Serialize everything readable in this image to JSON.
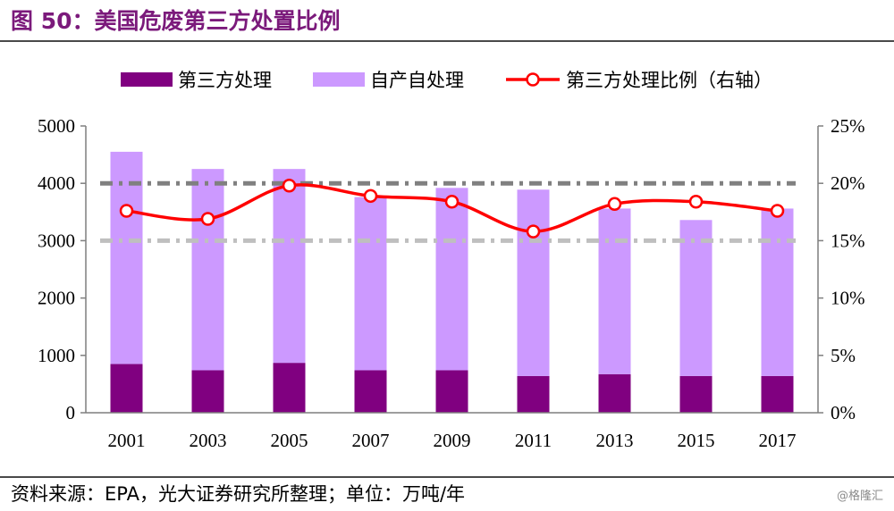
{
  "figure": {
    "title": "图 50：美国危废第三方处置比例",
    "source": "资料来源：EPA，光大证券研究所整理；单位：万吨/年",
    "watermark": "@格隆汇"
  },
  "colors": {
    "title": "#7b1a7b",
    "third_party_bar": "#800080",
    "self_bar": "#cc99ff",
    "ratio_line": "#ff0000",
    "ref_line_20": "#808080",
    "ref_line_15": "#bfbfbf"
  },
  "chart_data": {
    "type": "bar",
    "stacked": true,
    "categories": [
      "2001",
      "2003",
      "2005",
      "2007",
      "2009",
      "2011",
      "2013",
      "2015",
      "2017"
    ],
    "series": [
      {
        "name": "第三方处理",
        "kind": "bar",
        "axis": "left",
        "values": [
          850,
          740,
          870,
          740,
          740,
          640,
          670,
          640,
          640
        ]
      },
      {
        "name": "自产自处理",
        "kind": "bar",
        "axis": "left",
        "values": [
          3700,
          3510,
          3380,
          3020,
          3180,
          3250,
          2890,
          2720,
          2920
        ]
      },
      {
        "name": "第三方处理比例（右轴）",
        "kind": "line",
        "axis": "right",
        "values": [
          17.6,
          16.9,
          19.8,
          18.9,
          18.4,
          15.8,
          18.2,
          18.4,
          17.6
        ]
      }
    ],
    "left_axis": {
      "min": 0,
      "max": 5000,
      "ticks": [
        "0",
        "1000",
        "2000",
        "3000",
        "4000",
        "5000"
      ]
    },
    "right_axis": {
      "min": 0,
      "max": 25,
      "ticks": [
        "0%",
        "5%",
        "10%",
        "15%",
        "20%",
        "25%"
      ]
    },
    "reference_lines_right_axis": [
      20,
      15
    ],
    "legend_position": "top",
    "grid": false
  }
}
